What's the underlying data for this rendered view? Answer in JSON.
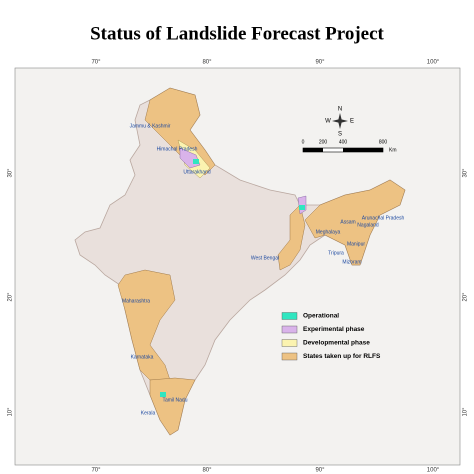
{
  "header": {
    "title": "Status of Landslide Forecast Project"
  },
  "graticule": {
    "longitudes": [
      "70°",
      "80°",
      "90°",
      "100°"
    ],
    "latitudes": [
      "30°",
      "20°",
      "10°"
    ]
  },
  "compass": {
    "north": "N",
    "south": "S",
    "east": "E",
    "west": "W"
  },
  "scale_bar": {
    "ticks": [
      "0",
      "200",
      "400",
      "800"
    ],
    "unit": "Km"
  },
  "legend": {
    "items": [
      {
        "label": "Operational",
        "color": "#2fe6c0"
      },
      {
        "label": "Experimental phase",
        "color": "#d9b3ea"
      },
      {
        "label": "Developmental phase",
        "color": "#fbf3b0"
      },
      {
        "label": "States taken up for RLFS",
        "color": "#edc283"
      }
    ]
  },
  "region_labels": [
    "Jammu & Kashmir",
    "Himachal Pradesh",
    "Uttarakhand",
    "Arunachal Pradesh",
    "Assam",
    "Nagaland",
    "Meghalaya",
    "Manipur",
    "Tripura",
    "Mizoram",
    "West Bengal",
    "Maharashtra",
    "Karnataka",
    "Kerala",
    "Tamil Nadu"
  ]
}
